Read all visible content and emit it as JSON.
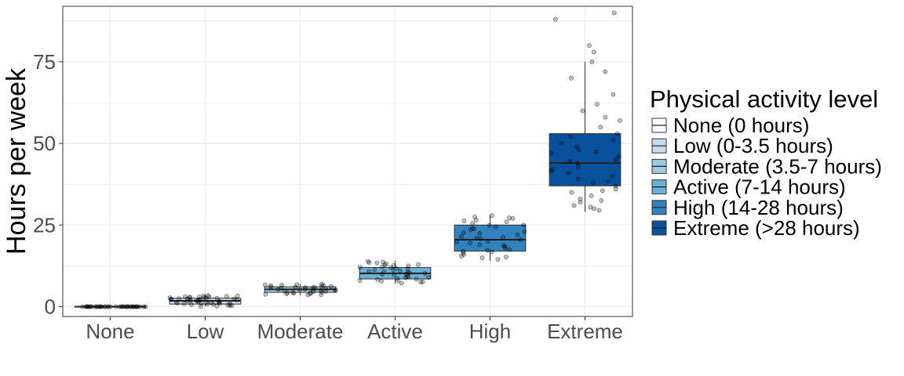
{
  "chart_data": {
    "type": "box",
    "title": "",
    "xlabel": "",
    "ylabel": "Hours per week",
    "ylim": [
      -3,
      92
    ],
    "y_ticks": [
      0,
      25,
      50,
      75
    ],
    "grid": true,
    "legend_position": "right",
    "legend_title": "Physical activity level",
    "categories": [
      "None",
      "Low",
      "Moderate",
      "Active",
      "High",
      "Extreme"
    ],
    "series": [
      {
        "category": "None",
        "legend": "None (0 hours)",
        "color": "#f7fbff",
        "q1": 0,
        "median": 0,
        "q3": 0,
        "whisker_low": 0,
        "whisker_high": 0,
        "points": [
          0,
          0,
          0,
          0,
          0,
          0,
          0,
          0,
          0,
          0,
          0,
          0,
          0,
          0,
          0,
          0,
          0,
          0,
          0,
          0,
          0,
          0,
          0,
          0,
          0,
          0,
          0,
          0,
          0,
          0,
          0,
          0,
          0,
          0,
          0,
          0,
          0,
          0,
          0,
          0
        ]
      },
      {
        "category": "Low",
        "legend": "Low (0-3.5 hours)",
        "color": "#c6dbef",
        "q1": 0.8,
        "median": 1.8,
        "q3": 2.6,
        "whisker_low": 0,
        "whisker_high": 3.5,
        "points": [
          0.1,
          0.3,
          0.5,
          0.6,
          0.8,
          0.9,
          1.0,
          1.1,
          1.2,
          1.3,
          1.4,
          1.5,
          1.6,
          1.7,
          1.8,
          1.9,
          2.0,
          2.1,
          2.2,
          2.3,
          2.4,
          2.5,
          2.6,
          2.7,
          2.8,
          2.9,
          3.0,
          3.1,
          3.2,
          3.3,
          3.4,
          0.4,
          0.7,
          1.5,
          2.2,
          3.0,
          1.0,
          2.6,
          0.2,
          1.9,
          2.8,
          3.3,
          0.9,
          1.4,
          2.4
        ]
      },
      {
        "category": "Moderate",
        "legend": "Moderate (3.5-7 hours)",
        "color": "#9ecae1",
        "q1": 4.4,
        "median": 5.3,
        "q3": 6.1,
        "whisker_low": 3.5,
        "whisker_high": 7.0,
        "points": [
          3.6,
          3.8,
          4.0,
          4.2,
          4.4,
          4.5,
          4.6,
          4.8,
          5.0,
          5.1,
          5.2,
          5.3,
          5.4,
          5.5,
          5.6,
          5.8,
          6.0,
          6.1,
          6.2,
          6.4,
          6.6,
          6.8,
          6.9,
          3.9,
          4.7,
          5.7,
          6.3,
          4.1,
          5.9,
          6.7,
          4.3,
          5.5,
          6.5,
          3.7,
          5.0
        ]
      },
      {
        "category": "Active",
        "legend": "Active (7-14 hours)",
        "color": "#6baed6",
        "q1": 8.5,
        "median": 10.2,
        "q3": 12.0,
        "whisker_low": 7.0,
        "whisker_high": 14.0,
        "points": [
          7.2,
          7.5,
          7.8,
          8.0,
          8.3,
          8.6,
          8.9,
          9.1,
          9.4,
          9.7,
          10.0,
          10.2,
          10.5,
          10.8,
          11.0,
          11.3,
          11.6,
          11.9,
          12.2,
          12.5,
          12.8,
          13.1,
          13.4,
          13.7,
          13.9,
          7.9,
          9.0,
          10.4,
          11.7,
          12.9,
          8.4,
          9.9,
          11.2,
          12.6,
          13.5,
          7.6,
          10.7,
          12.1
        ]
      },
      {
        "category": "High",
        "legend": "High (14-28 hours)",
        "color": "#3182bd",
        "q1": 17.0,
        "median": 20.5,
        "q3": 25.0,
        "whisker_low": 14.0,
        "whisker_high": 28.0,
        "points": [
          14.5,
          15.0,
          15.5,
          16.0,
          16.5,
          17.0,
          17.5,
          18.0,
          18.5,
          19.0,
          19.5,
          20.0,
          20.5,
          21.0,
          21.5,
          22.0,
          22.5,
          23.0,
          23.5,
          24.0,
          24.5,
          25.0,
          25.5,
          26.0,
          26.5,
          27.0,
          27.5,
          27.9,
          15.2,
          16.8,
          18.7,
          21.3,
          23.8,
          26.3,
          27.2,
          19.8,
          22.7,
          24.9,
          17.3,
          20.9
        ]
      },
      {
        "category": "Extreme",
        "legend": "Extreme (>28 hours)",
        "color": "#08519c",
        "q1": 37.0,
        "median": 44.0,
        "q3": 53.0,
        "whisker_low": 29.0,
        "whisker_high": 75.0,
        "points": [
          29.5,
          30.0,
          30.5,
          31.0,
          32.0,
          33.0,
          34.0,
          35.0,
          36.0,
          37.0,
          38.0,
          39.0,
          40.0,
          41.0,
          42.0,
          43.0,
          44.0,
          45.0,
          46.0,
          47.0,
          48.0,
          49.0,
          50.0,
          51.0,
          52.0,
          53.0,
          55.0,
          57.0,
          58.0,
          60.0,
          62.0,
          65.0,
          70.0,
          72.0,
          75.0,
          78.0,
          80.0,
          88.0,
          90.0,
          35.5,
          41.5,
          47.5,
          44.5,
          38.5,
          32.5
        ]
      }
    ]
  },
  "colors": {
    "grid": "#ebebeb",
    "panel_border": "#333333",
    "point_fill": "#000000",
    "tick_text": "#4d4d4d"
  }
}
